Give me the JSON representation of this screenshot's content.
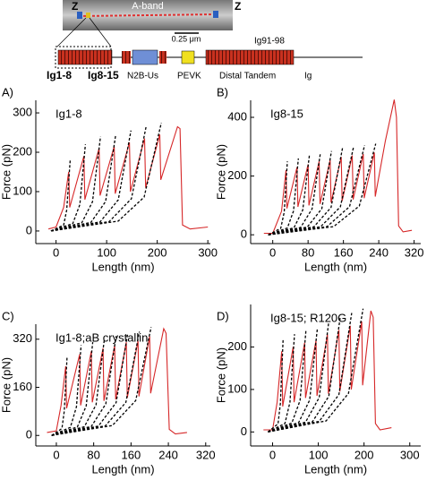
{
  "diagram": {
    "z_left": "Z",
    "a_band": "A-band",
    "z_right": "Z",
    "scale": "0.25 μm",
    "ig91": "Ig91-98",
    "ig1": "Ig1-8",
    "ig8": "Ig8-15",
    "n2b": "N2B-Us",
    "pevk": "PEVK",
    "distal": "Distal Tandem",
    "ig": "Ig"
  },
  "chart_data": [
    {
      "type": "line",
      "panel_label": "A)",
      "annotation": "Ig1-8",
      "xlabel": "Length (nm)",
      "ylabel": "Force (pN)",
      "xlim": [
        -40,
        305
      ],
      "ylim": [
        -32,
        332
      ],
      "xticks": [
        0,
        100,
        200,
        300
      ],
      "yticks": [
        0,
        100,
        200,
        300
      ],
      "series": [
        {
          "color": "#d62728",
          "x": [
            -15,
            0,
            15,
            25,
            27,
            55,
            57,
            85,
            87,
            115,
            117,
            145,
            147,
            175,
            177,
            205,
            207,
            240,
            245,
            250,
            265,
            300
          ],
          "values": [
            5,
            10,
            60,
            150,
            60,
            190,
            80,
            210,
            90,
            215,
            95,
            225,
            100,
            235,
            110,
            245,
            130,
            265,
            260,
            15,
            5,
            10
          ]
        },
        {
          "color": "#000000",
          "dash": true,
          "x": [
            -10,
            15,
            21,
            28
          ],
          "values": [
            0,
            15,
            53,
            180
          ]
        },
        {
          "color": "#000000",
          "dash": true,
          "x": [
            -10,
            33,
            47,
            58
          ],
          "values": [
            0,
            19,
            67,
            220
          ]
        },
        {
          "color": "#000000",
          "dash": true,
          "x": [
            -10,
            51,
            72,
            88
          ],
          "values": [
            0,
            21,
            74,
            240
          ]
        },
        {
          "color": "#000000",
          "dash": true,
          "x": [
            -10,
            69,
            98,
            118
          ],
          "values": [
            0,
            22,
            75,
            245
          ]
        },
        {
          "color": "#000000",
          "dash": true,
          "x": [
            -10,
            87,
            123,
            148
          ],
          "values": [
            0,
            23,
            79,
            255
          ]
        },
        {
          "color": "#000000",
          "dash": true,
          "x": [
            -10,
            105,
            149,
            178
          ],
          "values": [
            0,
            24,
            82,
            265
          ]
        },
        {
          "color": "#000000",
          "dash": true,
          "x": [
            -10,
            123,
            174,
            208
          ],
          "values": [
            0,
            25,
            86,
            275
          ]
        }
      ]
    },
    {
      "type": "line",
      "panel_label": "B)",
      "annotation": "Ig8-15",
      "xlabel": "Length (nm)",
      "ylabel": "Force (pN)",
      "xlim": [
        -50,
        335
      ],
      "ylim": [
        -30,
        458
      ],
      "xticks": [
        0,
        80,
        160,
        240,
        320
      ],
      "yticks": [
        0,
        200,
        400
      ],
      "series": [
        {
          "color": "#d62728",
          "x": [
            -20,
            0,
            20,
            30,
            32,
            55,
            57,
            80,
            82,
            105,
            107,
            130,
            132,
            155,
            157,
            180,
            182,
            205,
            207,
            230,
            232,
            255,
            275,
            280,
            285,
            295,
            315
          ],
          "values": [
            5,
            5,
            80,
            220,
            90,
            230,
            95,
            240,
            100,
            250,
            105,
            255,
            110,
            265,
            115,
            270,
            120,
            275,
            125,
            280,
            130,
            320,
            460,
            400,
            30,
            10,
            15
          ]
        },
        {
          "color": "#000000",
          "dash": true,
          "x": [
            -10,
            18,
            26,
            33
          ],
          "values": [
            0,
            22,
            77,
            250
          ]
        },
        {
          "color": "#000000",
          "dash": true,
          "x": [
            -10,
            33,
            47,
            58
          ],
          "values": [
            0,
            23,
            81,
            260
          ]
        },
        {
          "color": "#000000",
          "dash": true,
          "x": [
            -10,
            48,
            68,
            83
          ],
          "values": [
            0,
            24,
            84,
            270
          ]
        },
        {
          "color": "#000000",
          "dash": true,
          "x": [
            -10,
            63,
            89,
            108
          ],
          "values": [
            0,
            25,
            88,
            280
          ]
        },
        {
          "color": "#000000",
          "dash": true,
          "x": [
            -10,
            78,
            111,
            133
          ],
          "values": [
            0,
            26,
            89,
            285
          ]
        },
        {
          "color": "#000000",
          "dash": true,
          "x": [
            -10,
            93,
            132,
            158
          ],
          "values": [
            0,
            27,
            93,
            295
          ]
        },
        {
          "color": "#000000",
          "dash": true,
          "x": [
            -10,
            108,
            153,
            183
          ],
          "values": [
            0,
            27,
            95,
            300
          ]
        },
        {
          "color": "#000000",
          "dash": true,
          "x": [
            -10,
            123,
            174,
            208
          ],
          "values": [
            0,
            28,
            96,
            305
          ]
        },
        {
          "color": "#000000",
          "dash": true,
          "x": [
            -10,
            138,
            196,
            233
          ],
          "values": [
            0,
            28,
            98,
            310
          ]
        }
      ]
    },
    {
      "type": "line",
      "panel_label": "C)",
      "annotation": "Ig1-8;aB crystallin",
      "xlabel": "Length (nm)",
      "ylabel": "Force (pN)",
      "xlim": [
        -44,
        330
      ],
      "ylim": [
        -35,
        370
      ],
      "xticks": [
        0,
        80,
        160,
        240,
        320
      ],
      "yticks": [
        0,
        160,
        320
      ],
      "series": [
        {
          "color": "#d62728",
          "x": [
            -20,
            0,
            10,
            20,
            22,
            50,
            52,
            75,
            77,
            100,
            102,
            125,
            127,
            150,
            152,
            175,
            177,
            200,
            202,
            230,
            235,
            242,
            255,
            280
          ],
          "values": [
            10,
            15,
            100,
            230,
            90,
            270,
            100,
            280,
            110,
            290,
            115,
            300,
            120,
            310,
            125,
            315,
            130,
            330,
            140,
            355,
            340,
            20,
            5,
            10
          ]
        },
        {
          "color": "#000000",
          "dash": true,
          "x": [
            -10,
            12,
            17,
            23
          ],
          "values": [
            0,
            23,
            81,
            260
          ]
        },
        {
          "color": "#000000",
          "dash": true,
          "x": [
            -10,
            30,
            43,
            53
          ],
          "values": [
            0,
            27,
            95,
            300
          ]
        },
        {
          "color": "#000000",
          "dash": true,
          "x": [
            -10,
            45,
            64,
            78
          ],
          "values": [
            0,
            28,
            98,
            310
          ]
        },
        {
          "color": "#000000",
          "dash": true,
          "x": [
            -10,
            60,
            85,
            103
          ],
          "values": [
            0,
            29,
            102,
            320
          ]
        },
        {
          "color": "#000000",
          "dash": true,
          "x": [
            -10,
            75,
            106,
            128
          ],
          "values": [
            0,
            30,
            105,
            330
          ]
        },
        {
          "color": "#000000",
          "dash": true,
          "x": [
            -10,
            90,
            128,
            153
          ],
          "values": [
            0,
            31,
            109,
            340
          ]
        },
        {
          "color": "#000000",
          "dash": true,
          "x": [
            -10,
            105,
            149,
            178
          ],
          "values": [
            0,
            32,
            110,
            345
          ]
        },
        {
          "color": "#000000",
          "dash": true,
          "x": [
            -10,
            120,
            170,
            203
          ],
          "values": [
            0,
            33,
            116,
            360
          ]
        }
      ]
    },
    {
      "type": "line",
      "panel_label": "D)",
      "annotation": "Ig8-15; R120G",
      "xlabel": "Length (nm)",
      "ylabel": "Force (pN)",
      "xlim": [
        -48,
        324
      ],
      "ylim": [
        -33,
        300
      ],
      "xticks": [
        0,
        100,
        200,
        300
      ],
      "yticks": [
        0,
        100,
        200
      ],
      "series": [
        {
          "color": "#d62728",
          "x": [
            -20,
            0,
            10,
            20,
            22,
            45,
            47,
            70,
            72,
            95,
            97,
            120,
            122,
            145,
            147,
            170,
            172,
            195,
            197,
            215,
            220,
            225,
            235,
            260
          ],
          "values": [
            5,
            5,
            70,
            190,
            60,
            200,
            70,
            210,
            80,
            215,
            85,
            230,
            90,
            240,
            95,
            250,
            100,
            260,
            110,
            285,
            270,
            20,
            5,
            10
          ]
        },
        {
          "color": "#000000",
          "dash": true,
          "x": [
            -10,
            12,
            17,
            23
          ],
          "values": [
            0,
            19,
            67,
            220
          ]
        },
        {
          "color": "#000000",
          "dash": true,
          "x": [
            -10,
            27,
            38,
            48
          ],
          "values": [
            0,
            20,
            70,
            230
          ]
        },
        {
          "color": "#000000",
          "dash": true,
          "x": [
            -10,
            42,
            60,
            73
          ],
          "values": [
            0,
            21,
            74,
            240
          ]
        },
        {
          "color": "#000000",
          "dash": true,
          "x": [
            -10,
            57,
            81,
            98
          ],
          "values": [
            0,
            22,
            75,
            245
          ]
        },
        {
          "color": "#000000",
          "dash": true,
          "x": [
            -10,
            72,
            102,
            123
          ],
          "values": [
            0,
            23,
            81,
            260
          ]
        },
        {
          "color": "#000000",
          "dash": true,
          "x": [
            -10,
            87,
            123,
            148
          ],
          "values": [
            0,
            24,
            84,
            270
          ]
        },
        {
          "color": "#000000",
          "dash": true,
          "x": [
            -10,
            102,
            145,
            173
          ],
          "values": [
            0,
            25,
            88,
            280
          ]
        },
        {
          "color": "#000000",
          "dash": true,
          "x": [
            -10,
            117,
            166,
            198
          ],
          "values": [
            0,
            26,
            91,
            290
          ]
        }
      ]
    }
  ]
}
